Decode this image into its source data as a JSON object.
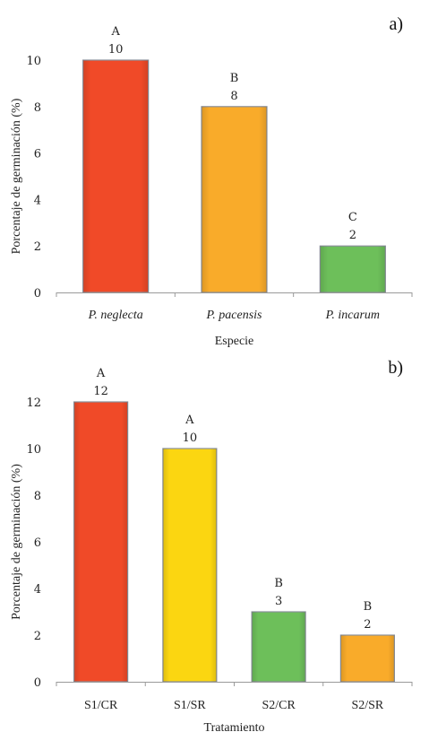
{
  "chart_data": [
    {
      "type": "bar",
      "panel_label": "a)",
      "categories": [
        "P. neglecta",
        "P. pacensis",
        "P. incarum"
      ],
      "categories_italic": true,
      "values": [
        10,
        8,
        2
      ],
      "letters": [
        "A",
        "B",
        "C"
      ],
      "colors": [
        "#f04a28",
        "#f9ab2a",
        "#6dbf5a"
      ],
      "xlabel": "Especie",
      "ylabel": "Porcentaje de germinación (%)",
      "ylim": [
        0,
        10
      ],
      "yticks": [
        0,
        2,
        4,
        6,
        8,
        10
      ],
      "grid": false
    },
    {
      "type": "bar",
      "panel_label": "b)",
      "categories": [
        "S1/CR",
        "S1/SR",
        "S2/CR",
        "S2/SR"
      ],
      "categories_italic": false,
      "values": [
        12,
        10,
        3,
        2
      ],
      "letters": [
        "A",
        "A",
        "B",
        "B"
      ],
      "colors": [
        "#f04a28",
        "#fbd611",
        "#6dbf5a",
        "#f9ab2a"
      ],
      "xlabel": "Tratamiento",
      "ylabel": "Porcentaje de germinación (%)",
      "ylim": [
        0,
        12
      ],
      "yticks": [
        0,
        2,
        4,
        6,
        8,
        10,
        12
      ],
      "grid": false
    }
  ]
}
